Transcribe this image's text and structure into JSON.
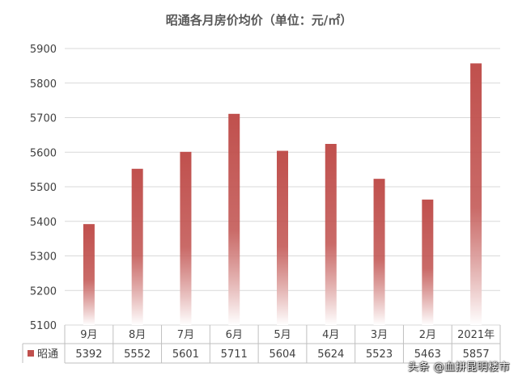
{
  "chart_data": {
    "type": "bar",
    "title": "昭通各月房价均价（单位：元/㎡）",
    "categories": [
      "9月",
      "8月",
      "7月",
      "6月",
      "5月",
      "4月",
      "3月",
      "2月",
      "2021年"
    ],
    "series": [
      {
        "name": "昭通",
        "values": [
          5392,
          5552,
          5601,
          5711,
          5604,
          5624,
          5523,
          5463,
          5857
        ]
      }
    ],
    "ylim": [
      5100,
      5900
    ],
    "yticks": [
      5100,
      5200,
      5300,
      5400,
      5500,
      5600,
      5700,
      5800,
      5900
    ],
    "grid": true,
    "data_table": true,
    "colors": {
      "bar": "#c0504d",
      "bar_fade": "#ffffff",
      "grid": "#d9d9d9",
      "text": "#404040"
    }
  },
  "watermark": "头条 @血拼昆明楼市"
}
